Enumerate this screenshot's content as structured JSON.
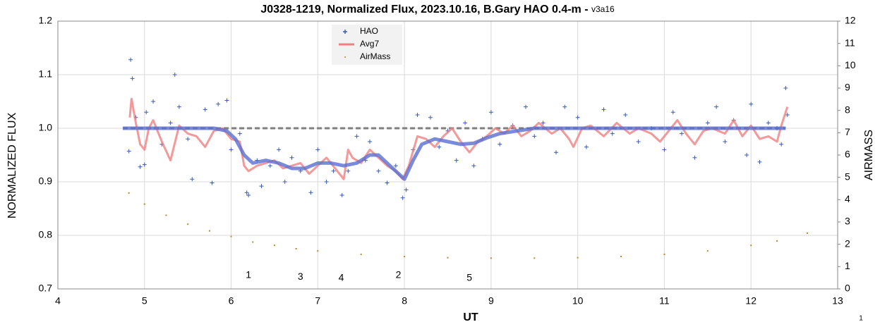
{
  "chart_data": {
    "type": "scatter",
    "title": "J0328-1219, Normalized Flux, 2023.10.16, B.Gary HAO 0.4-m - ",
    "version": "v3a16",
    "xlabel": "UT",
    "ylabel": "NORMALIZED FLUX",
    "y2label": "AIRMASS",
    "xlim": [
      4,
      13
    ],
    "xticks": [
      4,
      5,
      6,
      7,
      8,
      9,
      10,
      11,
      12,
      13
    ],
    "ylim": [
      0.7,
      1.2
    ],
    "yticks": [
      0.7,
      0.8,
      0.9,
      {
        "value": 1,
        "label": "1.0"
      },
      1.1,
      1.2
    ],
    "y2lim": [
      0,
      12
    ],
    "y2ticks": [
      0,
      1,
      2,
      3,
      4,
      5,
      6,
      7,
      8,
      9,
      10,
      11,
      12
    ],
    "grid": true,
    "legend": "top",
    "annotations": [
      {
        "text": "1",
        "x": 6.2,
        "y": 0.725
      },
      {
        "text": "3",
        "x": 6.8,
        "y": 0.722
      },
      {
        "text": "4",
        "x": 7.27,
        "y": 0.72
      },
      {
        "text": "2",
        "x": 7.93,
        "y": 0.725
      },
      {
        "text": "5",
        "x": 8.75,
        "y": 0.72
      }
    ],
    "page_number": "1",
    "series": [
      {
        "style": "dashed",
        "color": "#7f7f7f",
        "x": [
          4.75,
          12.4
        ],
        "values": [
          1,
          1
        ]
      },
      {
        "name": "HAO",
        "style": "plus",
        "color": "#3c5ab4",
        "x": [
          4.82,
          4.84,
          4.86,
          4.9,
          4.95,
          5.0,
          5.02,
          5.1,
          5.2,
          5.3,
          5.35,
          5.4,
          5.5,
          5.55,
          5.7,
          5.78,
          5.85,
          5.95,
          6.0,
          6.1,
          6.18,
          6.2,
          6.3,
          6.35,
          6.45,
          6.55,
          6.62,
          6.7,
          6.8,
          6.92,
          7.0,
          7.1,
          7.18,
          7.28,
          7.35,
          7.45,
          7.55,
          7.6,
          7.7,
          7.8,
          7.9,
          7.98,
          8.02,
          8.1,
          8.15,
          8.3,
          8.4,
          8.5,
          8.6,
          8.7,
          8.8,
          8.9,
          9.0,
          9.1,
          9.25,
          9.4,
          9.5,
          9.6,
          9.75,
          9.85,
          10.0,
          10.1,
          10.3,
          10.4,
          10.55,
          10.7,
          10.85,
          11.0,
          11.1,
          11.2,
          11.35,
          11.5,
          11.6,
          11.7,
          11.8,
          11.95,
          12.0,
          12.1,
          12.2,
          12.3,
          12.35,
          12.4,
          12.42
        ],
        "values": [
          0.957,
          1.128,
          1.093,
          1.02,
          0.928,
          0.932,
          1.03,
          1.05,
          0.97,
          1.01,
          1.1,
          1.04,
          0.98,
          0.905,
          1.035,
          0.898,
          1.045,
          1.052,
          0.96,
          0.99,
          0.88,
          0.875,
          0.94,
          0.892,
          0.93,
          0.96,
          0.9,
          0.945,
          0.92,
          0.88,
          0.96,
          0.9,
          0.92,
          0.875,
          0.92,
          0.985,
          0.94,
          0.975,
          0.92,
          0.898,
          0.93,
          0.87,
          0.885,
          0.96,
          1.025,
          1.02,
          0.965,
          0.995,
          0.94,
          1.01,
          0.93,
          0.98,
          1.03,
          0.97,
          1.005,
          1.04,
          0.985,
          1.01,
          0.955,
          1.04,
          1.02,
          0.965,
          1.035,
          0.99,
          1.025,
          0.975,
          1.0,
          0.96,
          1.03,
          0.99,
          0.945,
          1.01,
          1.04,
          0.975,
          1.015,
          0.95,
          1.045,
          0.937,
          1.01,
          1.0,
          0.97,
          1.075,
          1.025
        ]
      },
      {
        "name": "Avg7",
        "style": "line",
        "color": "#f08080",
        "x": [
          4.83,
          4.85,
          4.9,
          4.95,
          5.0,
          5.05,
          5.1,
          5.15,
          5.2,
          5.3,
          5.4,
          5.5,
          5.6,
          5.7,
          5.8,
          5.9,
          6.0,
          6.1,
          6.15,
          6.2,
          6.3,
          6.4,
          6.5,
          6.6,
          6.7,
          6.8,
          6.9,
          7.0,
          7.1,
          7.2,
          7.3,
          7.35,
          7.4,
          7.5,
          7.6,
          7.7,
          7.8,
          7.9,
          7.98,
          8.05,
          8.15,
          8.25,
          8.35,
          8.45,
          8.55,
          8.65,
          8.75,
          8.85,
          8.95,
          9.05,
          9.15,
          9.25,
          9.35,
          9.45,
          9.55,
          9.7,
          9.8,
          9.9,
          9.95,
          10.05,
          10.15,
          10.3,
          10.45,
          10.6,
          10.7,
          10.85,
          10.95,
          11.05,
          11.15,
          11.25,
          11.35,
          11.45,
          11.55,
          11.7,
          11.8,
          11.9,
          12.0,
          12.1,
          12.2,
          12.3,
          12.35,
          12.42
        ],
        "values": [
          1.02,
          1.055,
          1.01,
          0.97,
          0.96,
          1.0,
          1.015,
          0.995,
          0.975,
          0.94,
          1.005,
          0.99,
          0.985,
          0.965,
          0.995,
          1.0,
          0.98,
          0.975,
          0.93,
          0.92,
          0.93,
          0.935,
          0.94,
          0.925,
          0.93,
          0.935,
          0.915,
          0.93,
          0.945,
          0.925,
          0.905,
          0.96,
          0.945,
          0.935,
          0.96,
          0.945,
          0.93,
          0.92,
          0.905,
          0.93,
          0.985,
          0.98,
          0.965,
          0.985,
          1.0,
          0.975,
          0.955,
          0.975,
          0.985,
          1.0,
          0.99,
          1.005,
          0.985,
          0.995,
          1.01,
          0.99,
          1.0,
          0.98,
          0.965,
          1.0,
          1.005,
          0.985,
          1.01,
          0.99,
          1.0,
          0.99,
          0.975,
          0.995,
          1.015,
          0.99,
          0.97,
          0.995,
          1.0,
          0.99,
          1.015,
          0.985,
          1.005,
          0.98,
          0.985,
          0.975,
          1.005,
          1.04
        ]
      },
      {
        "style": "thick",
        "color": "#5a6ed2",
        "x": [
          4.75,
          5.8,
          5.95,
          6.05,
          6.15,
          6.25,
          6.4,
          6.55,
          6.7,
          6.85,
          7.0,
          7.15,
          7.3,
          7.45,
          7.6,
          7.7,
          7.8,
          7.9,
          8.0,
          8.1,
          8.2,
          8.35,
          8.5,
          8.65,
          8.8,
          8.95,
          9.1,
          9.3,
          9.5,
          12.4
        ],
        "values": [
          1.0,
          1.0,
          0.995,
          0.98,
          0.95,
          0.935,
          0.94,
          0.935,
          0.925,
          0.925,
          0.935,
          0.935,
          0.93,
          0.935,
          0.95,
          0.95,
          0.935,
          0.92,
          0.905,
          0.94,
          0.97,
          0.98,
          0.975,
          0.97,
          0.972,
          0.982,
          0.99,
          0.995,
          1.0,
          1.0
        ]
      },
      {
        "name": "AirMass",
        "style": "dots",
        "color": "#b8862e",
        "axis": "y2",
        "x": [
          4.82,
          5.0,
          5.25,
          5.5,
          5.75,
          6.0,
          6.25,
          6.5,
          6.75,
          7.0,
          7.5,
          8.0,
          8.5,
          9.0,
          9.5,
          10.0,
          10.5,
          11.0,
          11.5,
          12.0,
          12.3,
          12.65
        ],
        "values": [
          4.3,
          3.8,
          3.3,
          2.9,
          2.6,
          2.35,
          2.1,
          1.95,
          1.8,
          1.7,
          1.55,
          1.45,
          1.4,
          1.38,
          1.38,
          1.4,
          1.45,
          1.55,
          1.7,
          1.95,
          2.15,
          2.5
        ]
      }
    ]
  }
}
